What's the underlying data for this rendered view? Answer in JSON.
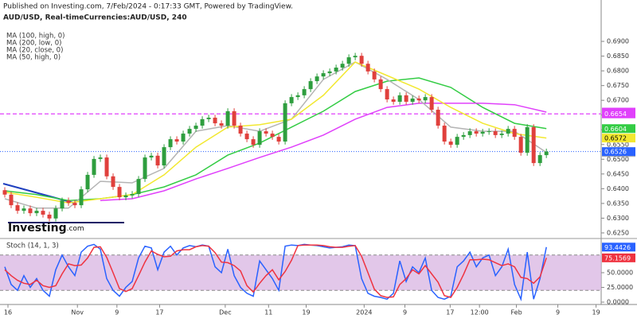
{
  "header": {
    "line1": "Published on Investing.com, 7/Feb/2024 - 0:17:33 GMT, Powered by TradingView.",
    "line2": "AUD/USD, Real-timeCurrencies:AUD/USD, 240"
  },
  "logo": {
    "brand": "Investing",
    "suffix": ".com"
  },
  "chart_data": [
    {
      "type": "candlestick",
      "up_color": "#2e9e3e",
      "down_color": "#e0403c",
      "last_color": "#2962ff",
      "xlim": [
        -0.75,
        93.6
      ],
      "ylim": [
        0.6231,
        0.6946
      ],
      "yticks": [
        {
          "value": 0.625,
          "label": "0.6250"
        },
        {
          "value": 0.63,
          "label": "0.6300"
        },
        {
          "value": 0.635,
          "label": "0.6350"
        },
        {
          "value": 0.64,
          "label": "0.6400"
        },
        {
          "value": 0.645,
          "label": "0.6450"
        },
        {
          "value": 0.65,
          "label": "0.6500"
        },
        {
          "value": 0.655,
          "label": "0.6550"
        },
        {
          "value": 0.66,
          "label": "0.6600"
        },
        {
          "value": 0.665,
          "label": "0.6650"
        },
        {
          "value": 0.67,
          "label": "0.6700"
        },
        {
          "value": 0.675,
          "label": "0.6750"
        },
        {
          "value": 0.68,
          "label": "0.6800"
        },
        {
          "value": 0.685,
          "label": "0.6850"
        },
        {
          "value": 0.69,
          "label": "0.6900"
        }
      ],
      "open": [
        0.6395,
        0.638,
        0.6344,
        0.6325,
        0.6333,
        0.6317,
        0.6325,
        0.6312,
        0.6299,
        0.6333,
        0.636,
        0.6352,
        0.6344,
        0.6398,
        0.6447,
        0.6501,
        0.6506,
        0.6442,
        0.6406,
        0.6371,
        0.6377,
        0.6382,
        0.6433,
        0.6506,
        0.6512,
        0.6479,
        0.6541,
        0.6568,
        0.656,
        0.6587,
        0.6603,
        0.6614,
        0.6636,
        0.6641,
        0.6622,
        0.6614,
        0.6663,
        0.6614,
        0.6587,
        0.6568,
        0.6549,
        0.6595,
        0.6587,
        0.6576,
        0.656,
        0.669,
        0.6711,
        0.6717,
        0.6738,
        0.6765,
        0.6781,
        0.6792,
        0.6798,
        0.6811,
        0.6824,
        0.6846,
        0.6851,
        0.6824,
        0.6798,
        0.6771,
        0.6738,
        0.6703,
        0.6695,
        0.6717,
        0.6695,
        0.6706,
        0.67,
        0.6711,
        0.6668,
        0.6614,
        0.656,
        0.6549,
        0.6576,
        0.6582,
        0.6595,
        0.6587,
        0.6593,
        0.6595,
        0.6582,
        0.6587,
        0.6603,
        0.6576,
        0.6522,
        0.6609,
        0.6487,
        0.6514
      ],
      "high": [
        0.6405,
        0.639,
        0.6354,
        0.6343,
        0.6343,
        0.6335,
        0.6335,
        0.6322,
        0.6343,
        0.637,
        0.637,
        0.6362,
        0.6408,
        0.6457,
        0.6511,
        0.6516,
        0.6516,
        0.6452,
        0.6416,
        0.6387,
        0.6392,
        0.6443,
        0.6516,
        0.6522,
        0.6522,
        0.6551,
        0.6578,
        0.6578,
        0.6597,
        0.6613,
        0.6624,
        0.6646,
        0.6651,
        0.6651,
        0.6632,
        0.6673,
        0.6673,
        0.6624,
        0.6597,
        0.6578,
        0.6605,
        0.6605,
        0.6597,
        0.6586,
        0.67,
        0.6721,
        0.6727,
        0.6748,
        0.6775,
        0.6791,
        0.6802,
        0.6808,
        0.6821,
        0.6834,
        0.6856,
        0.6861,
        0.6861,
        0.6834,
        0.6808,
        0.6781,
        0.6748,
        0.6713,
        0.6727,
        0.6727,
        0.6716,
        0.6716,
        0.6721,
        0.6721,
        0.6678,
        0.6624,
        0.657,
        0.6586,
        0.6592,
        0.6605,
        0.6605,
        0.6603,
        0.6605,
        0.6605,
        0.6597,
        0.6613,
        0.6613,
        0.6586,
        0.6619,
        0.6619,
        0.6524,
        0.6536
      ],
      "low": [
        0.637,
        0.6334,
        0.6315,
        0.6315,
        0.6307,
        0.6307,
        0.6302,
        0.6289,
        0.6289,
        0.6323,
        0.6342,
        0.6334,
        0.6334,
        0.6388,
        0.6437,
        0.6491,
        0.6432,
        0.6396,
        0.6361,
        0.6361,
        0.6367,
        0.6372,
        0.6423,
        0.6496,
        0.6469,
        0.6469,
        0.6531,
        0.655,
        0.655,
        0.6577,
        0.6593,
        0.6604,
        0.6626,
        0.6612,
        0.6604,
        0.6604,
        0.6604,
        0.6577,
        0.6558,
        0.6539,
        0.6539,
        0.6577,
        0.6566,
        0.655,
        0.655,
        0.668,
        0.6701,
        0.6707,
        0.6728,
        0.6755,
        0.6771,
        0.6782,
        0.6788,
        0.6801,
        0.6814,
        0.6836,
        0.6814,
        0.6788,
        0.6761,
        0.6728,
        0.6693,
        0.6685,
        0.6685,
        0.6685,
        0.6685,
        0.669,
        0.669,
        0.6658,
        0.6604,
        0.655,
        0.6539,
        0.6539,
        0.6566,
        0.6572,
        0.6577,
        0.6577,
        0.6583,
        0.6572,
        0.6572,
        0.6577,
        0.6566,
        0.6512,
        0.6512,
        0.6477,
        0.6477,
        0.6504
      ],
      "close": [
        0.638,
        0.6344,
        0.6325,
        0.6333,
        0.6317,
        0.6325,
        0.6312,
        0.6299,
        0.6333,
        0.636,
        0.6352,
        0.6344,
        0.6398,
        0.6447,
        0.6501,
        0.6506,
        0.6442,
        0.6406,
        0.6371,
        0.6377,
        0.6382,
        0.6433,
        0.6506,
        0.6512,
        0.6479,
        0.6541,
        0.6568,
        0.656,
        0.6587,
        0.6603,
        0.6614,
        0.6636,
        0.6641,
        0.6622,
        0.6614,
        0.6663,
        0.6614,
        0.6587,
        0.6568,
        0.6549,
        0.6595,
        0.6587,
        0.6576,
        0.656,
        0.669,
        0.6711,
        0.6717,
        0.6738,
        0.6765,
        0.6781,
        0.6792,
        0.6798,
        0.6811,
        0.6824,
        0.6846,
        0.6851,
        0.6824,
        0.6798,
        0.6771,
        0.6738,
        0.6703,
        0.6695,
        0.6717,
        0.6695,
        0.6706,
        0.67,
        0.6711,
        0.6668,
        0.6614,
        0.656,
        0.6549,
        0.6576,
        0.6582,
        0.6595,
        0.6587,
        0.6593,
        0.6595,
        0.6582,
        0.6587,
        0.6603,
        0.6576,
        0.6522,
        0.6609,
        0.6487,
        0.6514,
        0.6526
      ],
      "series": [
        {
          "name": "MA (100, high, 0)",
          "color": "#33cc44",
          "values": [
            0.6393,
            0.638,
            0.636,
            0.6366,
            0.638,
            0.6406,
            0.6447,
            0.6514,
            0.6555,
            0.6609,
            0.6663,
            0.673,
            0.6765,
            0.6776,
            0.6744,
            0.6676,
            0.6622,
            0.6604
          ]
        },
        {
          "name": "MA (200, low, 0)",
          "color": "#e040fb",
          "values": [
            null,
            null,
            null,
            0.636,
            0.6366,
            0.6393,
            0.6433,
            0.6469,
            0.6506,
            0.6541,
            0.6582,
            0.6636,
            0.6676,
            0.669,
            0.669,
            0.669,
            0.6685,
            0.666
          ]
        },
        {
          "name": "MA (20, close, 0)",
          "color": "#b4b4b4",
          "values": [
            0.6366,
            0.6334,
            0.6334,
            0.6425,
            0.642,
            0.6469,
            0.6595,
            0.6614,
            0.6595,
            0.6636,
            0.6771,
            0.683,
            0.6771,
            0.6703,
            0.6609,
            0.6595,
            0.6595,
            0.6523
          ]
        },
        {
          "name": "MA (50, high, 0)",
          "color": "#f2e830",
          "values": [
            0.6388,
            0.6371,
            0.6352,
            0.6366,
            0.638,
            0.6447,
            0.6541,
            0.6609,
            0.6617,
            0.6636,
            0.6717,
            0.683,
            0.6784,
            0.6738,
            0.6676,
            0.6622,
            0.6587,
            0.6572
          ]
        }
      ],
      "hlines": [
        {
          "value": 0.6654,
          "color": "#e040fb"
        }
      ]
    },
    {
      "type": "stoch",
      "title": "Stoch (14, 1, 3)",
      "xlim": [
        -0.75,
        93.6
      ],
      "ylim": [
        -4,
        104
      ],
      "yticks": [
        {
          "value": 0,
          "label": "0.0000"
        },
        {
          "value": 25,
          "label": "25.0000"
        },
        {
          "value": 50,
          "label": "50.0000"
        }
      ],
      "bands": [
        20,
        80
      ],
      "band_color": "#d8b4e2",
      "xticks": [
        {
          "value": 0.5,
          "label": "16"
        },
        {
          "value": 11.4,
          "label": "Nov"
        },
        {
          "value": 17.6,
          "label": "9"
        },
        {
          "value": 24.3,
          "label": "17"
        },
        {
          "value": 34.6,
          "label": "Dec"
        },
        {
          "value": 41.4,
          "label": "11"
        },
        {
          "value": 47.3,
          "label": "19"
        },
        {
          "value": 56.4,
          "label": "2024"
        },
        {
          "value": 62.8,
          "label": "9"
        },
        {
          "value": 69.9,
          "label": "17"
        },
        {
          "value": 74.5,
          "label": "12:00"
        },
        {
          "value": 80.3,
          "label": "Feb"
        },
        {
          "value": 86.8,
          "label": "9"
        },
        {
          "value": 92.8,
          "label": "19"
        }
      ],
      "series": [
        {
          "color": "#2962ff",
          "values": [
            60,
            30,
            20,
            45,
            25,
            40,
            20,
            10,
            55,
            80,
            60,
            45,
            85,
            95,
            98,
            90,
            40,
            20,
            10,
            25,
            35,
            75,
            95,
            92,
            55,
            85,
            95,
            80,
            92,
            96,
            94,
            97,
            95,
            60,
            50,
            90,
            45,
            25,
            15,
            10,
            70,
            55,
            40,
            20,
            95,
            97,
            96,
            98,
            97,
            96,
            94,
            92,
            93,
            94,
            97,
            96,
            40,
            15,
            10,
            8,
            5,
            15,
            70,
            35,
            60,
            50,
            75,
            20,
            8,
            5,
            10,
            60,
            70,
            85,
            60,
            75,
            80,
            45,
            60,
            90,
            30,
            5,
            85,
            5,
            40,
            93.4426
          ]
        },
        {
          "color": "#ef3340",
          "values": [
            55,
            45,
            37,
            32,
            30,
            37,
            28,
            25,
            28,
            48,
            65,
            62,
            63,
            75,
            93,
            94,
            76,
            50,
            23,
            18,
            23,
            45,
            68,
            87,
            81,
            77,
            78,
            87,
            89,
            89,
            94,
            96,
            95,
            84,
            68,
            67,
            62,
            53,
            28,
            17,
            32,
            45,
            55,
            38,
            52,
            71,
            96,
            97,
            97,
            97,
            96,
            94,
            93,
            93,
            95,
            96,
            78,
            50,
            22,
            11,
            8,
            9,
            30,
            40,
            55,
            48,
            62,
            48,
            34,
            11,
            8,
            25,
            47,
            72,
            72,
            73,
            72,
            67,
            62,
            65,
            60,
            42,
            40,
            32,
            43,
            75.1569
          ]
        }
      ]
    }
  ]
}
